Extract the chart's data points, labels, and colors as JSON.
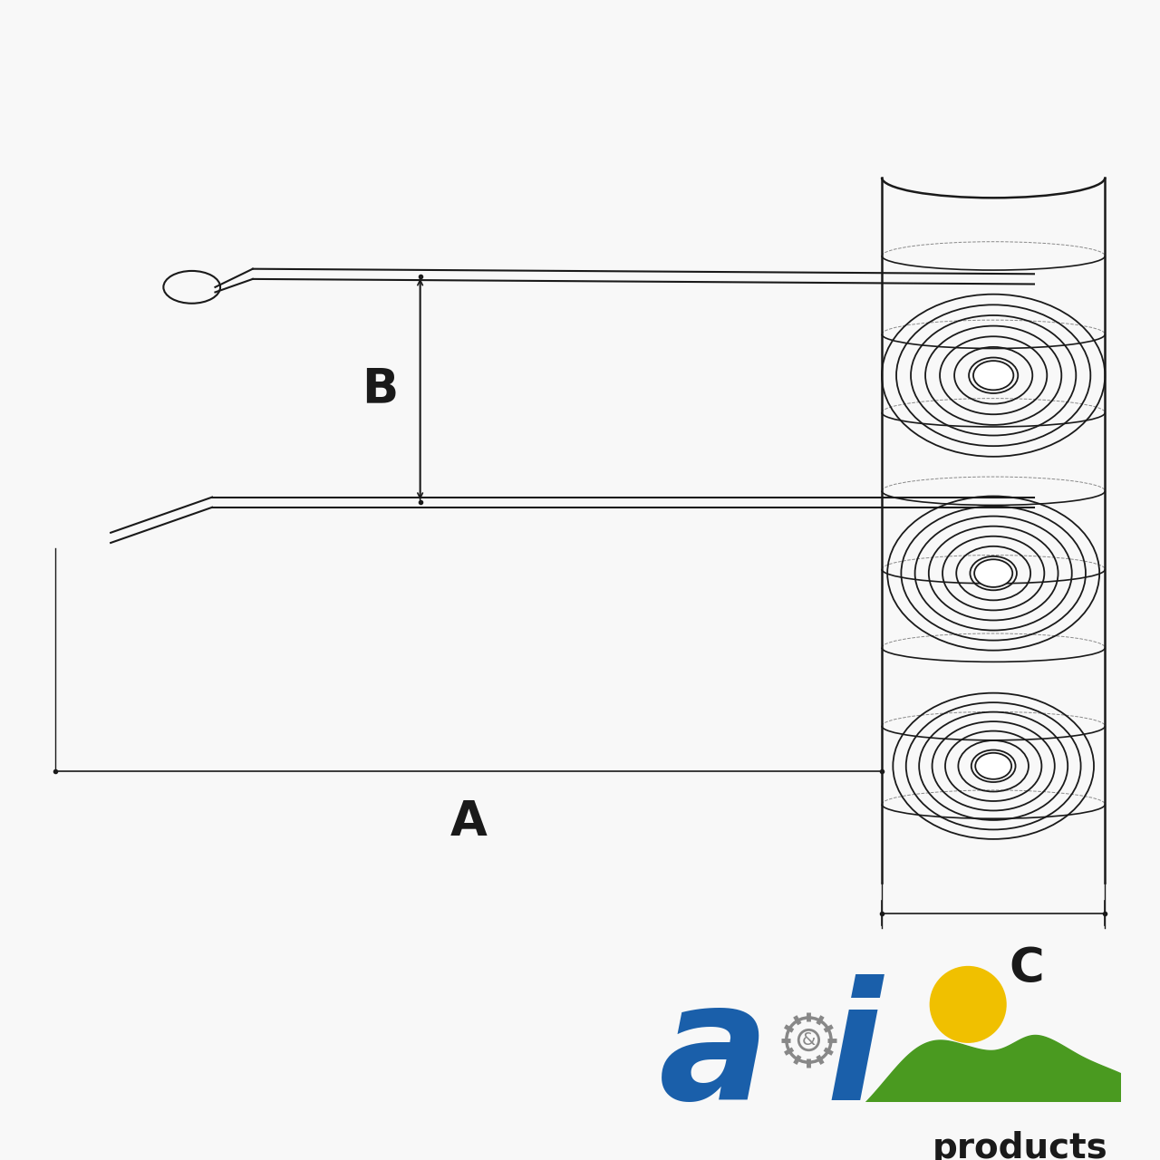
{
  "bg_color": "#f8f8f8",
  "line_color": "#1a1a1a",
  "label_A": "A",
  "label_B": "B",
  "label_C": "C",
  "label_fontsize_ABC": 38,
  "logo_blue": "#1a5faa",
  "logo_green": "#4a9a20",
  "logo_yellow": "#f0c000",
  "logo_gear_gray": "#888888",
  "logo_text_products": "products"
}
